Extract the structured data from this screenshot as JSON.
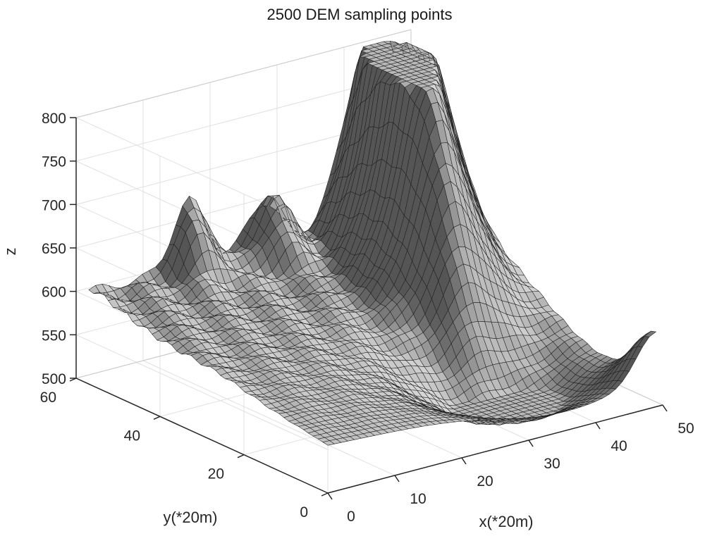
{
  "chart_data": {
    "type": "surface3d",
    "title": "2500 DEM sampling points",
    "xlabel": "x(*20m)",
    "ylabel": "y(*20m)",
    "zlabel": "z",
    "xlim": [
      0,
      50
    ],
    "ylim": [
      0,
      60
    ],
    "zlim": [
      500,
      800
    ],
    "xticks": [
      0,
      10,
      20,
      30,
      40,
      50
    ],
    "yticks": [
      0,
      20,
      40,
      60
    ],
    "zticks": [
      500,
      550,
      600,
      650,
      700,
      750,
      800
    ],
    "grid": true,
    "grid_points": 50,
    "surface_color": "#8c8c8c",
    "edge_color": "#1e1e1e",
    "features": [
      {
        "kind": "peak",
        "x": 44,
        "y": 52,
        "z": 800
      },
      {
        "kind": "ridge",
        "x": 36,
        "y": 44,
        "z": 750
      },
      {
        "kind": "hill",
        "x": 15,
        "y": 57,
        "z": 675
      },
      {
        "kind": "hill",
        "x": 26,
        "y": 55,
        "z": 668
      },
      {
        "kind": "valley-minimum",
        "x": 34,
        "y": 14,
        "z": 510
      },
      {
        "kind": "corner",
        "x": 49,
        "y": 0,
        "z": 560
      }
    ]
  }
}
